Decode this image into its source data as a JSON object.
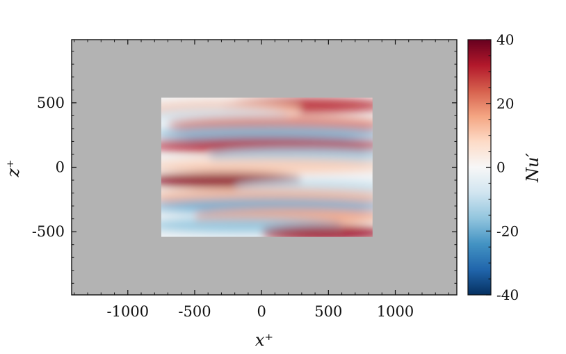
{
  "chart_data": {
    "type": "heatmap",
    "title": "",
    "xlabel": "x⁺",
    "ylabel": "z⁺",
    "xlim": [
      -1420,
      1460
    ],
    "ylim": [
      -990,
      990
    ],
    "x_ticks": [
      -1000,
      -500,
      0,
      500,
      1000
    ],
    "x_tick_labels": [
      "-1000",
      "-500",
      "0",
      "500",
      "1000"
    ],
    "y_ticks": [
      500,
      0,
      -500
    ],
    "y_tick_labels": [
      "500",
      "0",
      "-500"
    ],
    "background_color": "#b3b3b3",
    "field": {
      "x_range": [
        -750,
        830
      ],
      "z_range": [
        -540,
        540
      ],
      "description_streaks": [
        {
          "z": 480,
          "x_start": -200,
          "x_end": 830,
          "value": 30
        },
        {
          "z": 450,
          "x_start": -750,
          "x_end": 200,
          "value": 12
        },
        {
          "z": 400,
          "x_start": -750,
          "x_end": 100,
          "value": -8
        },
        {
          "z": 330,
          "x_start": -600,
          "x_end": 830,
          "value": 22
        },
        {
          "z": 260,
          "x_start": -700,
          "x_end": 830,
          "value": -18
        },
        {
          "z": 170,
          "x_start": -750,
          "x_end": 830,
          "value": 32
        },
        {
          "z": 90,
          "x_start": -300,
          "x_end": 830,
          "value": -14
        },
        {
          "z": 10,
          "x_start": -750,
          "x_end": 830,
          "value": 10
        },
        {
          "z": -100,
          "x_start": -750,
          "x_end": 200,
          "value": 36
        },
        {
          "z": -160,
          "x_start": -100,
          "x_end": 830,
          "value": -10
        },
        {
          "z": -230,
          "x_start": -750,
          "x_end": 830,
          "value": 14
        },
        {
          "z": -300,
          "x_start": -750,
          "x_end": 830,
          "value": -20
        },
        {
          "z": -380,
          "x_start": -400,
          "x_end": 830,
          "value": 16
        },
        {
          "z": -450,
          "x_start": -750,
          "x_end": 500,
          "value": -16
        },
        {
          "z": -510,
          "x_start": 100,
          "x_end": 830,
          "value": 34
        }
      ]
    },
    "colorbar": {
      "label": "Nu′",
      "range": [
        -40,
        40
      ],
      "ticks": [
        40,
        20,
        0,
        -20,
        -40
      ],
      "tick_labels": [
        "40",
        "20",
        "0",
        "-20",
        "-40"
      ],
      "colormap": "RdBu_r",
      "colormap_stops": [
        "#053061",
        "#2166ac",
        "#4393c3",
        "#92c5de",
        "#d1e5f0",
        "#f7f7f7",
        "#fddbc7",
        "#f4a582",
        "#d6604d",
        "#b2182b",
        "#67001f"
      ]
    }
  }
}
